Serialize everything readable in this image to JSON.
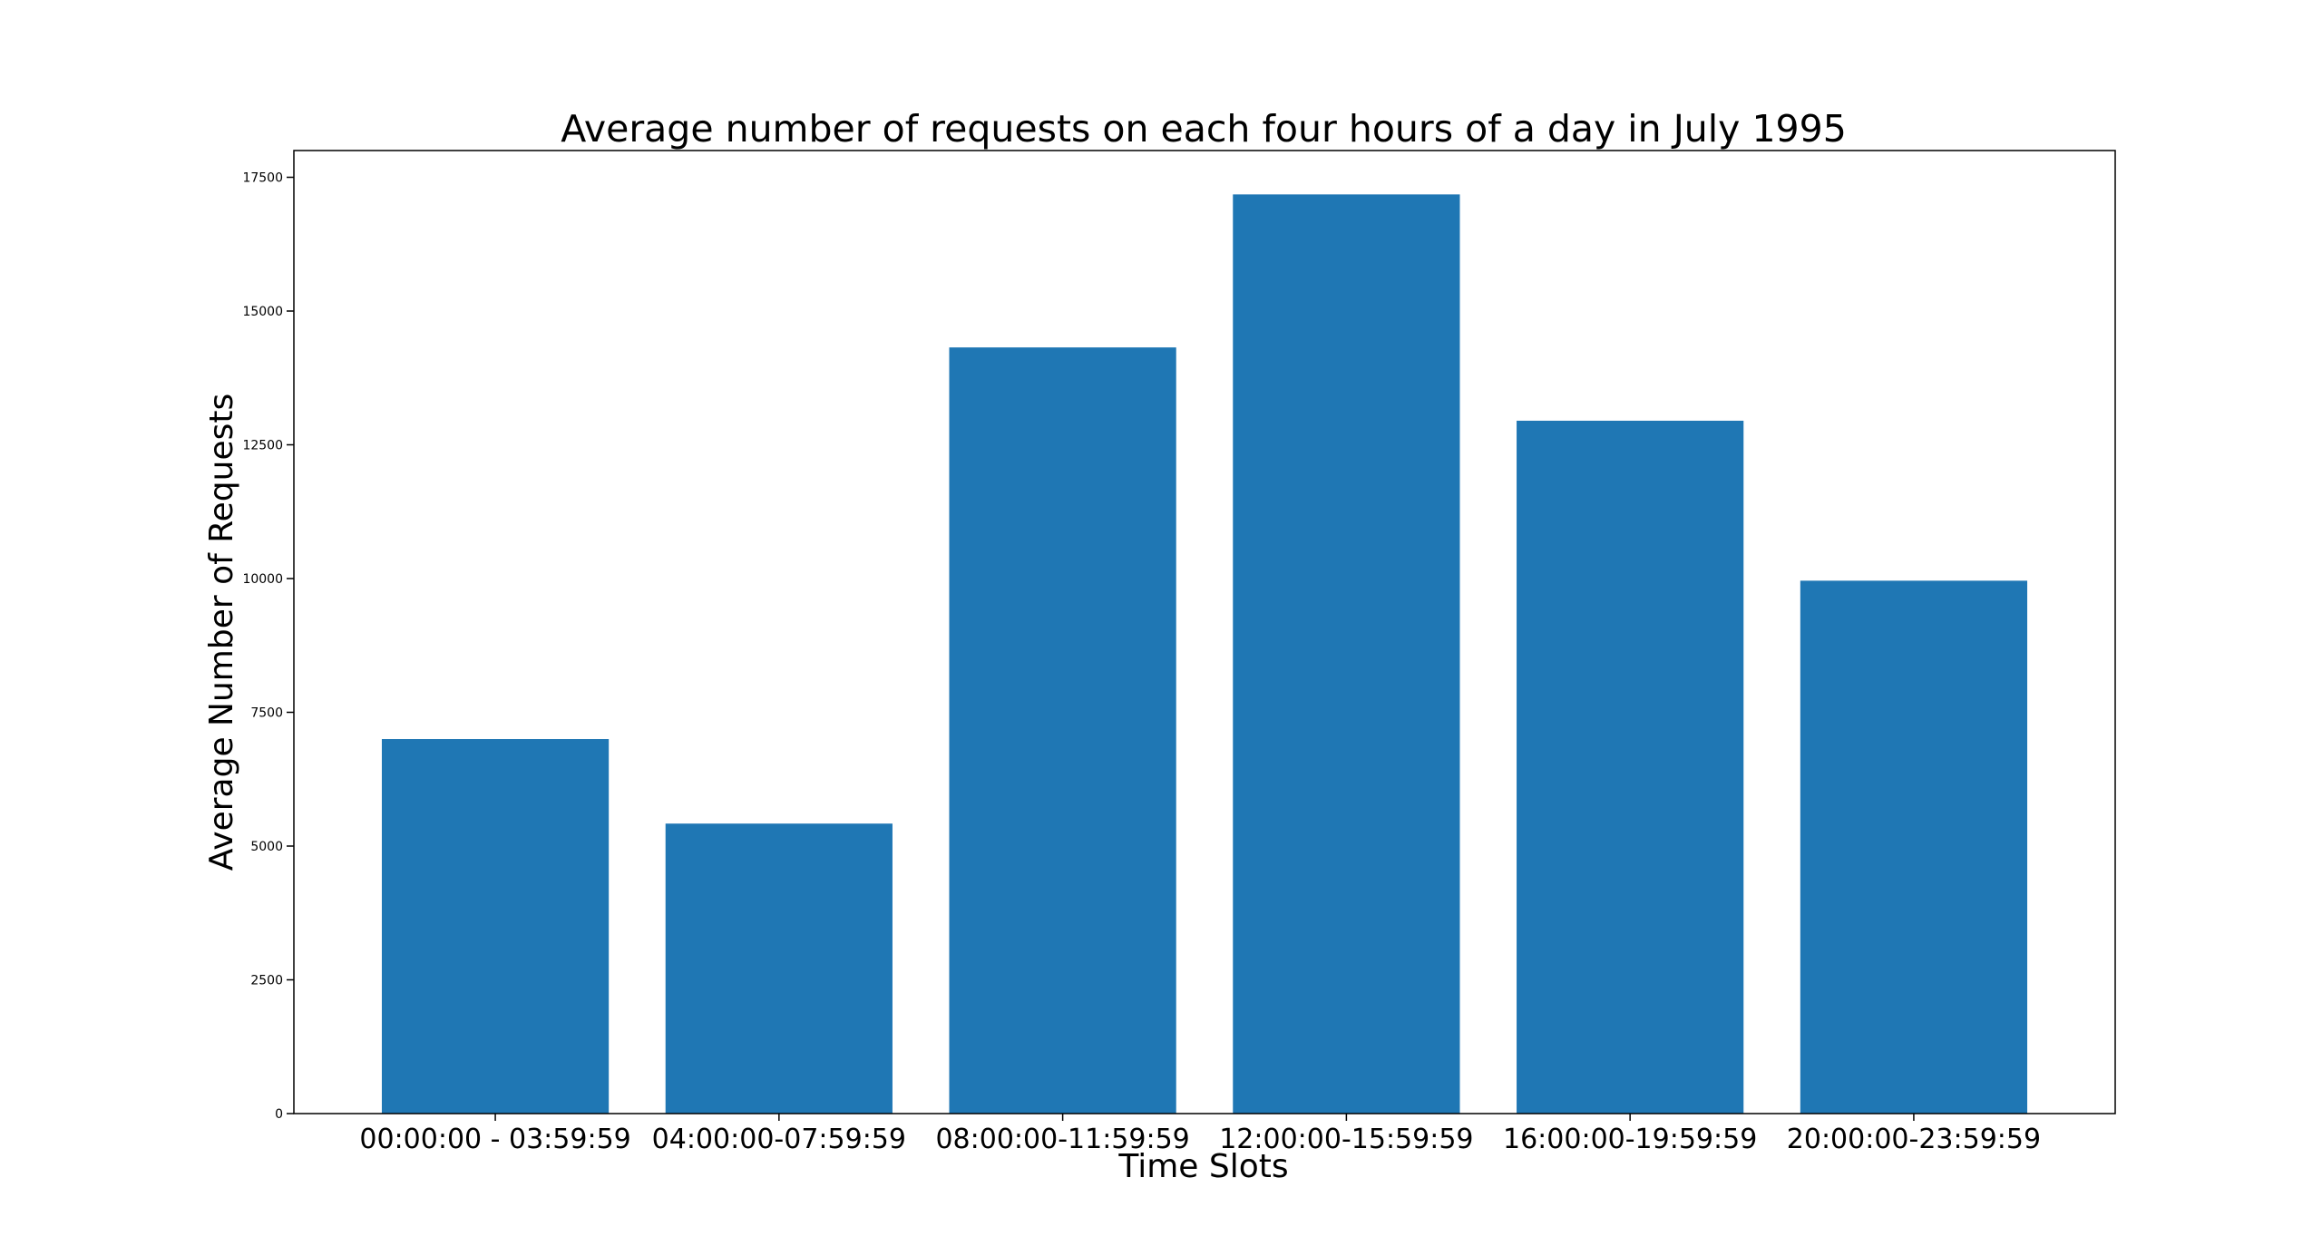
{
  "chart_data": {
    "type": "bar",
    "title": "Average number of requests on each four hours of a day in July 1995",
    "xlabel": "Time Slots",
    "ylabel": "Average Number of Requests",
    "categories": [
      "00:00:00 - 03:59:59",
      "04:00:00-07:59:59",
      "08:00:00-11:59:59",
      "12:00:00-15:59:59",
      "16:00:00-19:59:59",
      "20:00:00-23:59:59"
    ],
    "values": [
      7000,
      5420,
      14320,
      17180,
      12950,
      9960
    ],
    "ylim": [
      0,
      18000
    ],
    "yticks": [
      0,
      2500,
      5000,
      7500,
      10000,
      12500,
      15000,
      17500
    ],
    "ytick_labels": [
      "0",
      "2500",
      "5000",
      "7500",
      "10000",
      "12500",
      "15000",
      "17500"
    ],
    "bar_color": "#1f77b4",
    "grid": false,
    "legend": "none"
  }
}
